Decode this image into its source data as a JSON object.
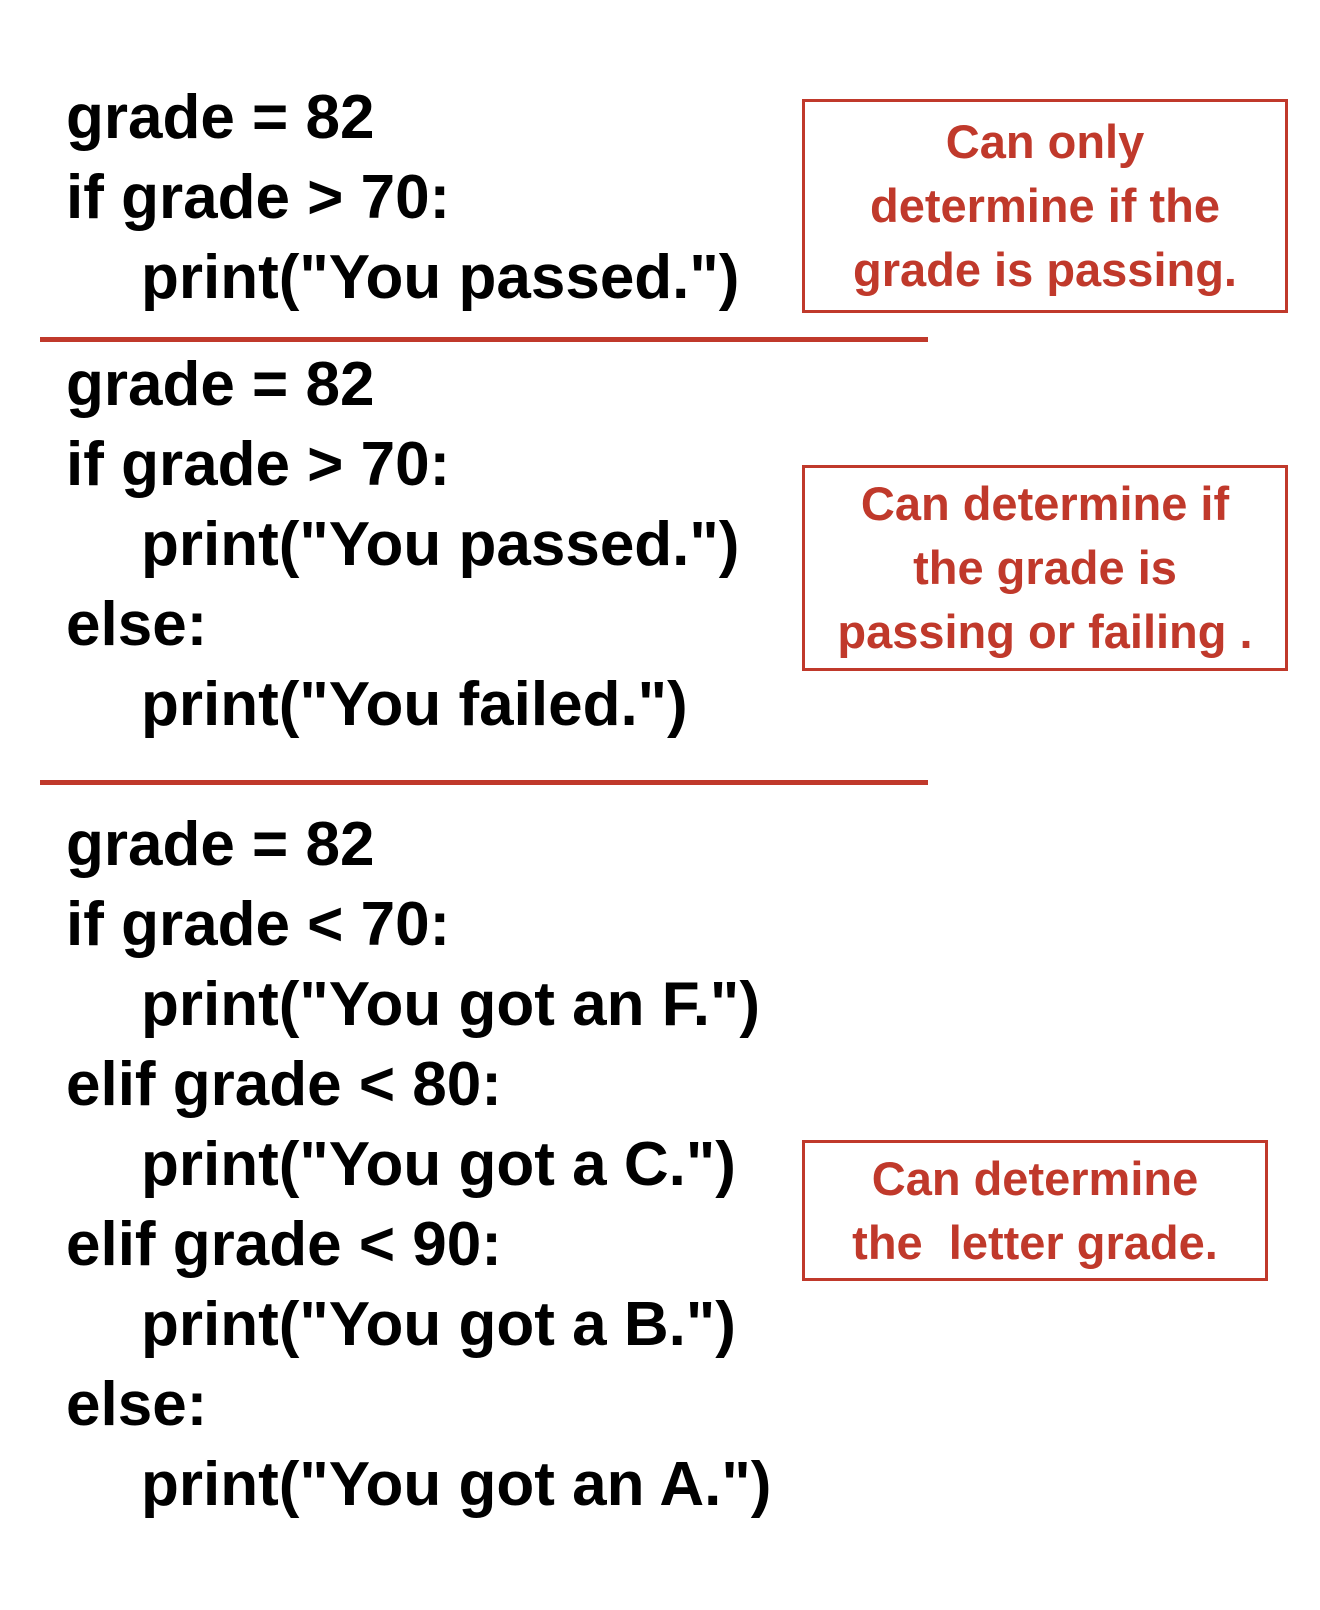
{
  "colors": {
    "accent": "#c0392b",
    "code_text": "#000000",
    "background": "#ffffff"
  },
  "blocks": [
    {
      "lines": [
        "grade = 82",
        "if grade > 70:",
        "print(\"You passed.\")"
      ],
      "note": [
        "Can only",
        "determine if the",
        "grade is passing."
      ]
    },
    {
      "lines": [
        "grade = 82",
        "if grade > 70:",
        "print(\"You passed.\")",
        "else:",
        "print(\"You failed.\")"
      ],
      "note": [
        "Can determine if",
        "the grade is",
        "passing or failing ."
      ]
    },
    {
      "lines": [
        "grade = 82",
        "if grade < 70:",
        "print(\"You got an F.\")",
        "elif grade < 80:",
        "print(\"You got a C.\")",
        "elif grade < 90:",
        "print(\"You got a B.\")",
        "else:",
        "print(\"You got an A.\")"
      ],
      "note": [
        "Can determine",
        "the  letter grade."
      ]
    }
  ]
}
